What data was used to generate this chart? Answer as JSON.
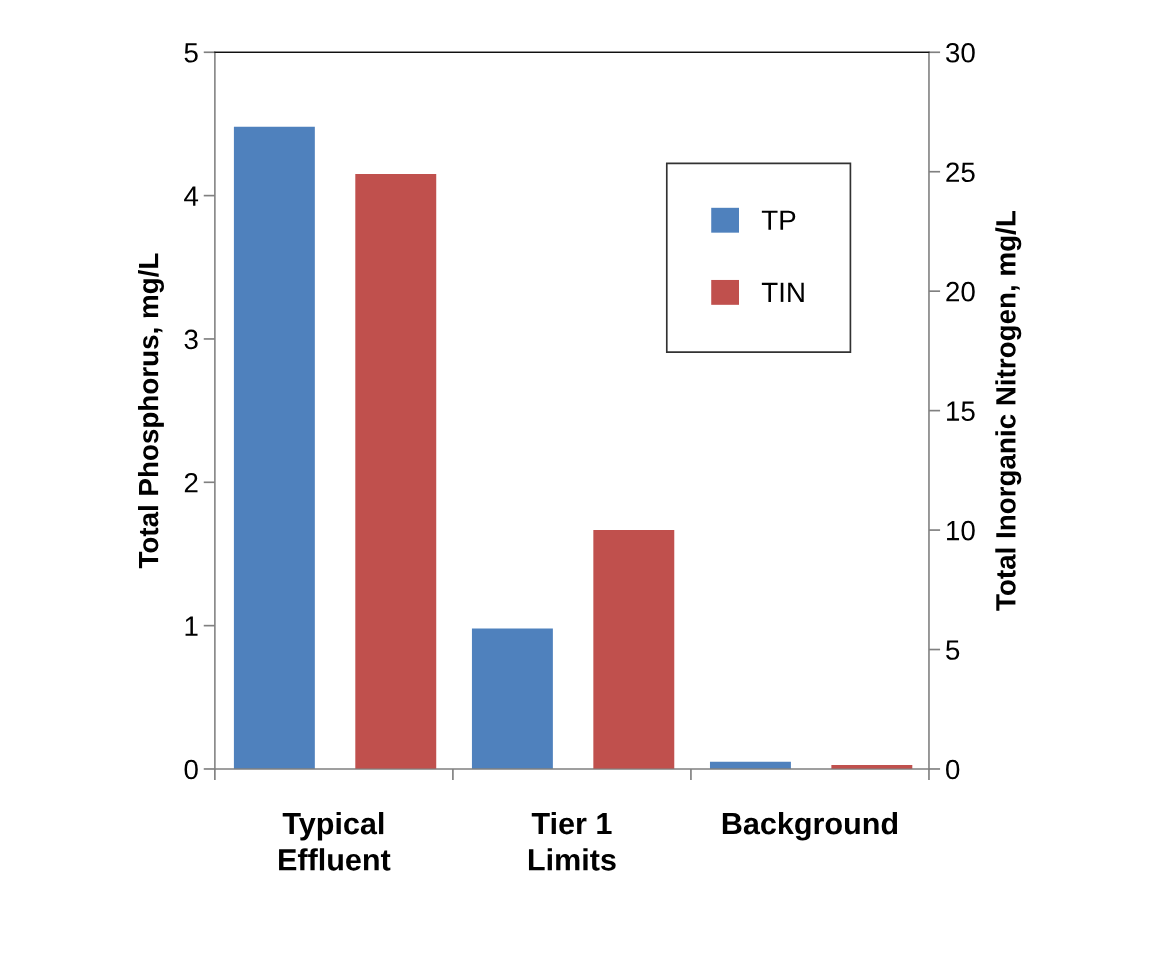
{
  "chart_data": {
    "type": "bar",
    "ylabel": "Total Phosphorus, mg/L",
    "y2label": "Total Inorganic Nitrogen, mg/L",
    "categories": [
      "Typical\nEffluent",
      "Tier 1\nLimits",
      "Background"
    ],
    "series": [
      {
        "name": "TP",
        "color": "#4f81bd",
        "values": [
          4.48,
          0.98,
          0.05
        ]
      },
      {
        "name": "TIN",
        "color": "#c0504d",
        "values": [
          24.9,
          10,
          0.17
        ],
        "axis": "y2"
      }
    ],
    "ylim": [
      0,
      5
    ],
    "yticks": [
      0,
      1,
      2,
      3,
      4,
      5
    ],
    "y2lim": [
      0,
      30
    ],
    "y2ticks": [
      0,
      5,
      10,
      15,
      20,
      25,
      30
    ],
    "legend": "top right",
    "grid": false
  }
}
